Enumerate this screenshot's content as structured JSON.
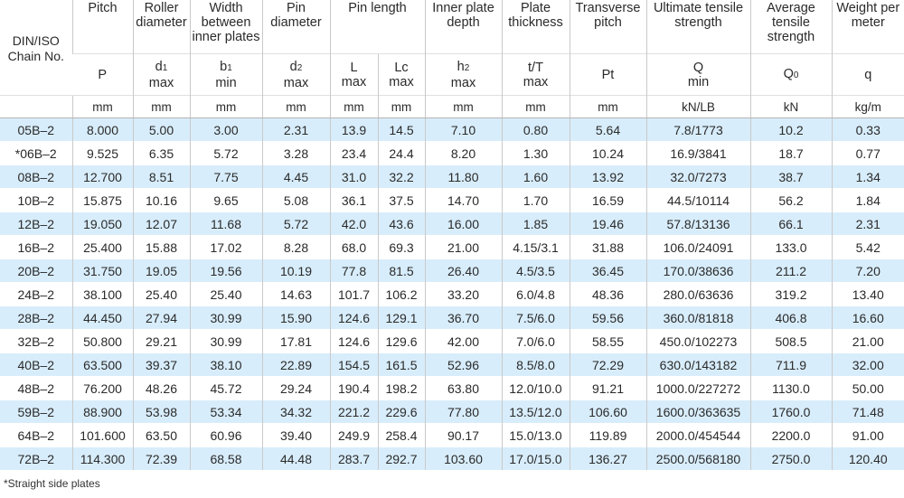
{
  "header": {
    "chain_label": "DIN/ISO",
    "chain_label2": "Chain No.",
    "titles": [
      "Pitch",
      "Roller diameter",
      "Width between inner plates",
      "Pin diameter",
      "Pin length",
      "Inner plate depth",
      "Plate thickness",
      "Transverse pitch",
      "Ultimate tensile strength",
      "Average tensile strength",
      "Weight per meter"
    ],
    "symbols": [
      {
        "symbol": "P"
      },
      {
        "symbol": "d",
        "sub": "1",
        "qualifier": "max"
      },
      {
        "symbol": "b",
        "sub": "1",
        "qualifier": "min"
      },
      {
        "symbol": "d",
        "sub": "2",
        "qualifier": "max"
      },
      {
        "symbol": "L",
        "qualifier": "max"
      },
      {
        "symbol": "Lc",
        "qualifier": "max"
      },
      {
        "symbol": "h",
        "sub": "2",
        "qualifier": "max"
      },
      {
        "symbol": "t/T",
        "qualifier": "max"
      },
      {
        "symbol": "Pt"
      },
      {
        "symbol": "Q",
        "qualifier": "min"
      },
      {
        "symbol": "Q",
        "sub": "0"
      },
      {
        "symbol": "q"
      }
    ],
    "units": [
      "mm",
      "mm",
      "mm",
      "mm",
      "mm",
      "mm",
      "mm",
      "mm",
      "mm",
      "kN/LB",
      "kN",
      "kg/m"
    ]
  },
  "table": {
    "rows": [
      [
        "05B–2",
        "8.000",
        "5.00",
        "3.00",
        "2.31",
        "13.9",
        "14.5",
        "7.10",
        "0.80",
        "5.64",
        "7.8/1773",
        "10.2",
        "0.33"
      ],
      [
        "*06B–2",
        "9.525",
        "6.35",
        "5.72",
        "3.28",
        "23.4",
        "24.4",
        "8.20",
        "1.30",
        "10.24",
        "16.9/3841",
        "18.7",
        "0.77"
      ],
      [
        "08B–2",
        "12.700",
        "8.51",
        "7.75",
        "4.45",
        "31.0",
        "32.2",
        "11.80",
        "1.60",
        "13.92",
        "32.0/7273",
        "38.7",
        "1.34"
      ],
      [
        "10B–2",
        "15.875",
        "10.16",
        "9.65",
        "5.08",
        "36.1",
        "37.5",
        "14.70",
        "1.70",
        "16.59",
        "44.5/10114",
        "56.2",
        "1.84"
      ],
      [
        "12B–2",
        "19.050",
        "12.07",
        "11.68",
        "5.72",
        "42.0",
        "43.6",
        "16.00",
        "1.85",
        "19.46",
        "57.8/13136",
        "66.1",
        "2.31"
      ],
      [
        "16B–2",
        "25.400",
        "15.88",
        "17.02",
        "8.28",
        "68.0",
        "69.3",
        "21.00",
        "4.15/3.1",
        "31.88",
        "106.0/24091",
        "133.0",
        "5.42"
      ],
      [
        "20B–2",
        "31.750",
        "19.05",
        "19.56",
        "10.19",
        "77.8",
        "81.5",
        "26.40",
        "4.5/3.5",
        "36.45",
        "170.0/38636",
        "211.2",
        "7.20"
      ],
      [
        "24B–2",
        "38.100",
        "25.40",
        "25.40",
        "14.63",
        "101.7",
        "106.2",
        "33.20",
        "6.0/4.8",
        "48.36",
        "280.0/63636",
        "319.2",
        "13.40"
      ],
      [
        "28B–2",
        "44.450",
        "27.94",
        "30.99",
        "15.90",
        "124.6",
        "129.1",
        "36.70",
        "7.5/6.0",
        "59.56",
        "360.0/81818",
        "406.8",
        "16.60"
      ],
      [
        "32B–2",
        "50.800",
        "29.21",
        "30.99",
        "17.81",
        "124.6",
        "129.6",
        "42.00",
        "7.0/6.0",
        "58.55",
        "450.0/102273",
        "508.5",
        "21.00"
      ],
      [
        "40B–2",
        "63.500",
        "39.37",
        "38.10",
        "22.89",
        "154.5",
        "161.5",
        "52.96",
        "8.5/8.0",
        "72.29",
        "630.0/143182",
        "711.9",
        "32.00"
      ],
      [
        "48B–2",
        "76.200",
        "48.26",
        "45.72",
        "29.24",
        "190.4",
        "198.2",
        "63.80",
        "12.0/10.0",
        "91.21",
        "1000.0/227272",
        "1130.0",
        "50.00"
      ],
      [
        "59B–2",
        "88.900",
        "53.98",
        "53.34",
        "34.32",
        "221.2",
        "229.6",
        "77.80",
        "13.5/12.0",
        "106.60",
        "1600.0/363635",
        "1760.0",
        "71.48"
      ],
      [
        "64B–2",
        "101.600",
        "63.50",
        "60.96",
        "39.40",
        "249.9",
        "258.4",
        "90.17",
        "15.0/13.0",
        "119.89",
        "2000.0/454544",
        "2200.0",
        "91.00"
      ],
      [
        "72B–2",
        "114.300",
        "72.39",
        "68.58",
        "44.48",
        "283.7",
        "292.7",
        "103.60",
        "17.0/15.0",
        "136.27",
        "2500.0/568180",
        "2750.0",
        "120.40"
      ]
    ]
  },
  "footnote": "*Straight side plates"
}
